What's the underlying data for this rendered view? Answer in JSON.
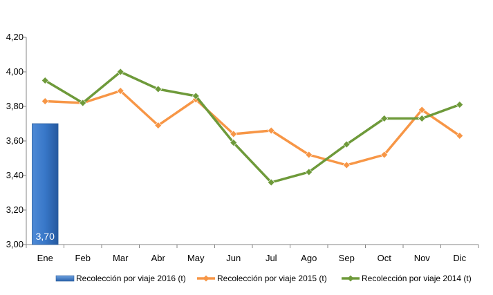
{
  "chart_data": {
    "type": "bar+line",
    "categories": [
      "Ene",
      "Feb",
      "Mar",
      "Abr",
      "May",
      "Jun",
      "Jul",
      "Ago",
      "Sep",
      "Oct",
      "Nov",
      "Dic"
    ],
    "ylim": [
      3.0,
      4.2
    ],
    "yticks": [
      "3,00",
      "3,20",
      "3,40",
      "3,60",
      "3,80",
      "4,00",
      "4,20"
    ],
    "ytick_values": [
      3.0,
      3.2,
      3.4,
      3.6,
      3.8,
      4.0,
      4.2
    ],
    "grid": false,
    "legend_position": "bottom",
    "series": [
      {
        "name": "Recolección por viaje 2016 (t)",
        "kind": "bar",
        "color": "#3a78c9",
        "values": [
          3.7,
          null,
          null,
          null,
          null,
          null,
          null,
          null,
          null,
          null,
          null,
          null
        ],
        "data_labels": [
          "3,70"
        ]
      },
      {
        "name": "Recolección por viaje 2015 (t)",
        "kind": "line",
        "color": "#f79646",
        "values": [
          3.83,
          3.82,
          3.89,
          3.69,
          3.84,
          3.64,
          3.66,
          3.52,
          3.46,
          3.52,
          3.78,
          3.63
        ]
      },
      {
        "name": "Recolección por viaje 2014 (t)",
        "kind": "line",
        "color": "#6e9a3a",
        "values": [
          3.95,
          3.82,
          4.0,
          3.9,
          3.86,
          3.59,
          3.36,
          3.42,
          3.58,
          3.73,
          3.73,
          3.81
        ]
      }
    ]
  }
}
